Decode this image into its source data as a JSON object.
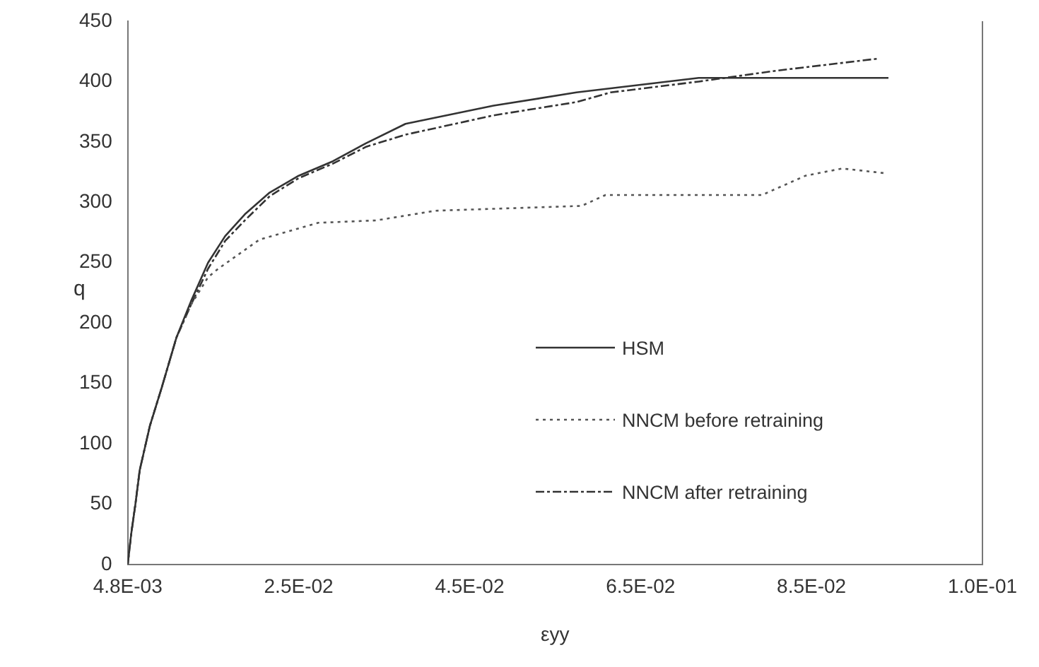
{
  "chart_data": {
    "type": "line",
    "xlabel": "εyy",
    "ylabel": "q",
    "xlim": [
      0.0048,
      0.1048
    ],
    "xticks": [
      {
        "value": 0.0048,
        "label": "4.8E-03"
      },
      {
        "value": 0.0248,
        "label": "2.5E-02"
      },
      {
        "value": 0.0448,
        "label": "4.5E-02"
      },
      {
        "value": 0.0648,
        "label": "6.5E-02"
      },
      {
        "value": 0.0848,
        "label": "8.5E-02"
      },
      {
        "value": 0.1048,
        "label": "1.0E-01"
      }
    ],
    "ylim": [
      0,
      450
    ],
    "yticks": [
      0,
      50,
      100,
      150,
      200,
      250,
      300,
      350,
      400,
      450
    ],
    "grid": false,
    "legend": "right",
    "marker": "none",
    "series": [
      {
        "name": "HSM",
        "color": "#333333",
        "line_style": "solid",
        "x": [
          0.0048,
          0.0052,
          0.0057,
          0.0062,
          0.0074,
          0.0088,
          0.0105,
          0.0122,
          0.0142,
          0.0162,
          0.0185,
          0.0214,
          0.0248,
          0.0288,
          0.0327,
          0.0373,
          0.0476,
          0.0573,
          0.0716,
          0.0938
        ],
        "values": [
          0,
          25,
          50,
          78,
          115,
          147,
          188,
          218,
          250,
          272,
          290,
          308,
          322,
          334,
          349,
          365,
          380,
          391,
          403,
          403
        ]
      },
      {
        "name": "NNCM before retraining",
        "color": "#555555",
        "line_style": "dotted",
        "x": [
          0.0048,
          0.0052,
          0.0057,
          0.0062,
          0.0074,
          0.0088,
          0.0105,
          0.0122,
          0.0142,
          0.0154,
          0.0202,
          0.0271,
          0.0339,
          0.0408,
          0.0579,
          0.0607,
          0.079,
          0.0841,
          0.0884,
          0.0935
        ],
        "values": [
          0,
          25,
          50,
          78,
          115,
          147,
          188,
          215,
          238,
          245,
          269,
          283,
          285,
          293,
          297,
          306,
          306,
          322,
          328,
          324
        ]
      },
      {
        "name": "NNCM after retraining",
        "color": "#333333",
        "line_style": "dashed",
        "x": [
          0.0048,
          0.0052,
          0.0057,
          0.0062,
          0.0074,
          0.0088,
          0.0105,
          0.0122,
          0.0142,
          0.0162,
          0.0185,
          0.0214,
          0.0248,
          0.0288,
          0.0327,
          0.0373,
          0.0476,
          0.0573,
          0.0613,
          0.0716,
          0.0807,
          0.0926
        ],
        "values": [
          0,
          25,
          50,
          78,
          115,
          147,
          188,
          215,
          245,
          268,
          285,
          305,
          320,
          332,
          346,
          356,
          372,
          383,
          391,
          400,
          409,
          419
        ]
      }
    ]
  }
}
